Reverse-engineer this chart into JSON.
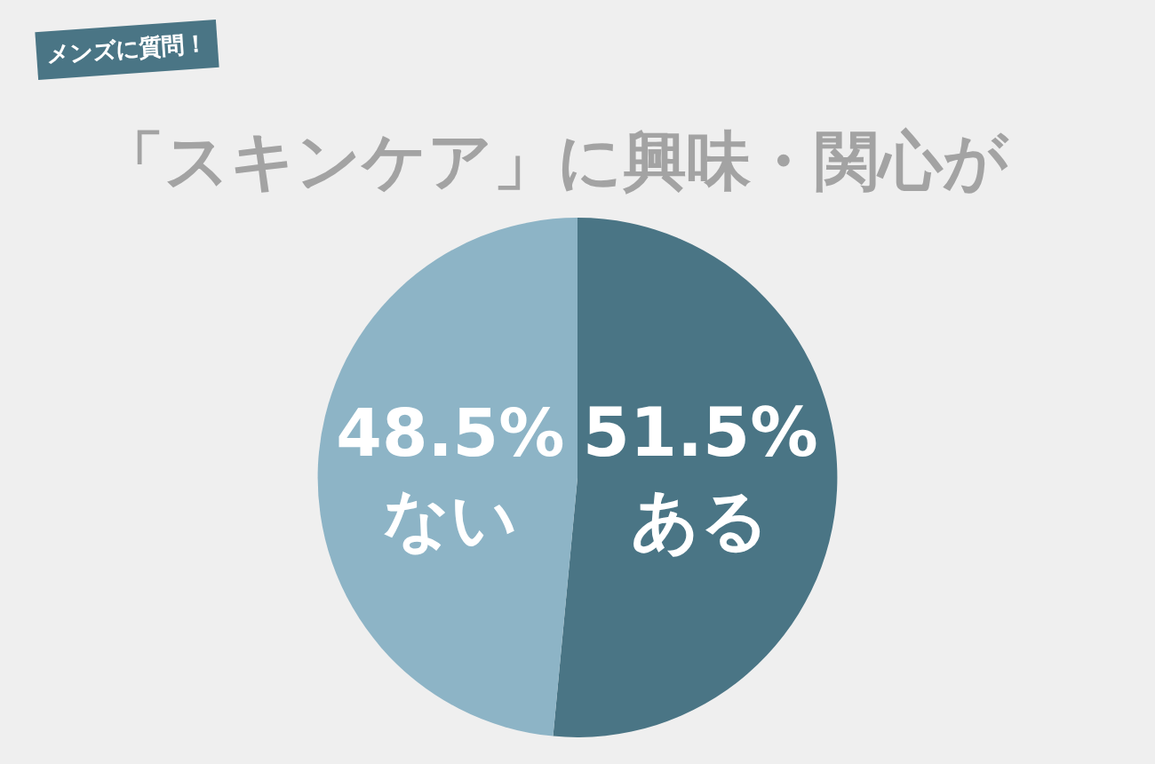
{
  "chart_data": {
    "type": "pie",
    "title": "「スキンケア」に興味・関心が",
    "annotations": [
      "メンズに質問！"
    ],
    "categories": [
      "ある",
      "ない"
    ],
    "values": [
      51.5,
      48.5
    ],
    "colors": [
      "#4a7585",
      "#8db4c6"
    ],
    "value_labels": [
      "51.5%",
      "48.5%"
    ],
    "legend": false
  }
}
